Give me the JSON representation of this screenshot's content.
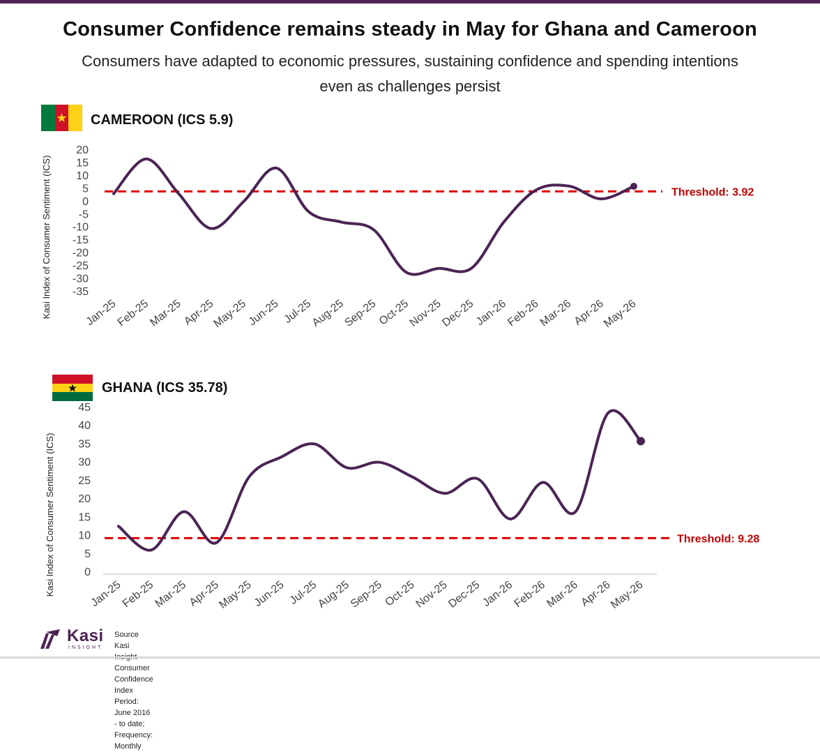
{
  "title": "Consumer Confidence remains steady in May for Ghana and Cameroon",
  "subtitle_line1": "Consumers have adapted to economic pressures, sustaining confidence and spending intentions",
  "subtitle_line2": "even as challenges persist",
  "colors": {
    "accent": "#4b2454",
    "line": "#4b2454",
    "threshold": "#e00000",
    "threshold_label": "#c00000"
  },
  "chart_data": [
    {
      "type": "line",
      "country_label": "CAMEROON (ICS 5.9)",
      "flag": "cameroon-flag",
      "ylabel": "Kasi Index of Consumer Sentiment (ICS)",
      "categories": [
        "Jan-25",
        "Feb-25",
        "Mar-25",
        "Apr-25",
        "May-25",
        "Jun-25",
        "Jul-25",
        "Aug-25",
        "Sep-25",
        "Oct-25",
        "Nov-25",
        "Dec-25",
        "Jan-26",
        "Feb-26",
        "Mar-26",
        "Apr-26",
        "May-26"
      ],
      "series": [
        {
          "values": [
            3,
            16.5,
            3,
            -10.5,
            0,
            13,
            -4,
            -8,
            -11,
            -27.5,
            -26,
            -26,
            -8,
            4.5,
            6,
            1,
            5.9
          ]
        }
      ],
      "ylim": [
        -35,
        20
      ],
      "yticks": [
        20,
        15,
        10,
        5,
        0,
        -5,
        -10,
        -15,
        -20,
        -25,
        -30,
        -35
      ],
      "threshold": 3.92,
      "threshold_label": "Threshold: 3.92",
      "grid": false
    },
    {
      "type": "line",
      "country_label": "GHANA (ICS 35.78)",
      "flag": "ghana-flag",
      "ylabel": "Kasi Index of Consumer Sentiment (ICS)",
      "categories": [
        "Jan-25",
        "Feb-25",
        "Mar-25",
        "Apr-25",
        "May-25",
        "Jun-25",
        "Jul-25",
        "Aug-25",
        "Sep-25",
        "Oct-25",
        "Nov-25",
        "Dec-25",
        "Jan-26",
        "Feb-26",
        "Mar-26",
        "Apr-26",
        "May-26"
      ],
      "series": [
        {
          "values": [
            12.5,
            6,
            16.5,
            8,
            26,
            31.5,
            35,
            28.5,
            30,
            26,
            21.5,
            25.5,
            14.5,
            24.5,
            16.5,
            43.5,
            35.78
          ]
        }
      ],
      "ylim": [
        0,
        45
      ],
      "yticks": [
        45,
        40,
        35,
        30,
        25,
        20,
        15,
        10,
        5,
        0
      ],
      "threshold": 9.28,
      "threshold_label": "Threshold: 9.28",
      "grid": false
    }
  ],
  "footer": {
    "logo_text": "Kasi",
    "logo_sub": "INSIGHT",
    "source_line1": "Source Kasi Insight Consumer Confidence Index",
    "source_line2": "Period: June 2016 - to date; Frequency: Monthly"
  }
}
